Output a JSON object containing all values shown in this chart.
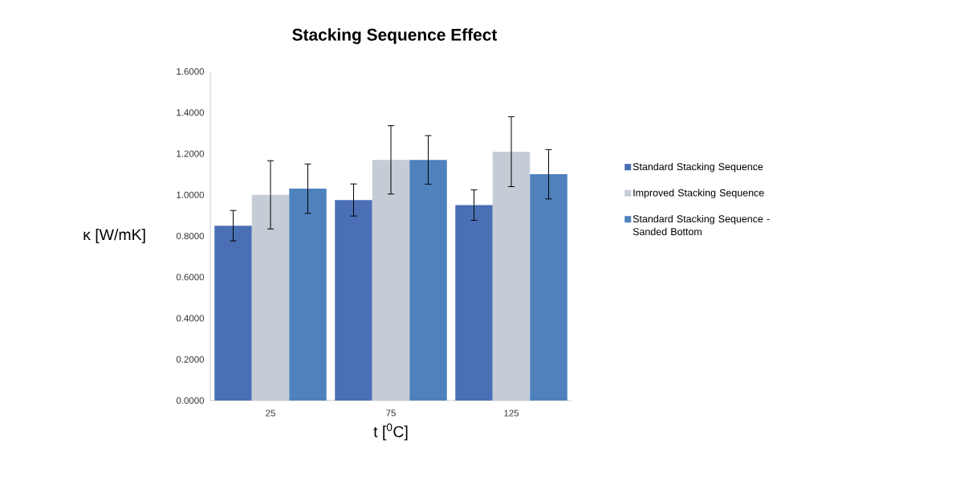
{
  "chart_data": {
    "type": "bar",
    "title": "Stacking Sequence Effect",
    "xlabel": "t [$^{0}$C]",
    "ylabel": "κ [W/mK]",
    "categories": [
      "25",
      "75",
      "125"
    ],
    "series": [
      {
        "name": "Standard Stacking Sequence",
        "color": "#4a6fb5",
        "values": [
          0.85,
          0.975,
          0.95
        ],
        "errors": [
          0.074,
          0.078,
          0.074
        ]
      },
      {
        "name": "Improved Stacking Sequence",
        "color": "#c5ccd6",
        "values": [
          1.0,
          1.17,
          1.21
        ],
        "errors": [
          0.166,
          0.166,
          0.17
        ]
      },
      {
        "name": "Standard Stacking Sequence - Sanded Bottom",
        "color": "#4f81bd",
        "values": [
          1.03,
          1.17,
          1.1
        ],
        "errors": [
          0.12,
          0.118,
          0.12
        ]
      }
    ],
    "ylim": [
      0,
      1.6
    ],
    "yticks": [
      {
        "value": 0,
        "label": "0.0000"
      },
      {
        "value": 0.2,
        "label": "0.2000"
      },
      {
        "value": 0.4,
        "label": "0.4000"
      },
      {
        "value": 0.6,
        "label": "0.6000"
      },
      {
        "value": 0.8,
        "label": "0.8000"
      },
      {
        "value": 1.0,
        "label": "1.0000"
      },
      {
        "value": 1.2,
        "label": "1.2000"
      },
      {
        "value": 1.4,
        "label": "1.4000"
      },
      {
        "value": 1.6,
        "label": "1.6000"
      }
    ],
    "legend": "right"
  }
}
